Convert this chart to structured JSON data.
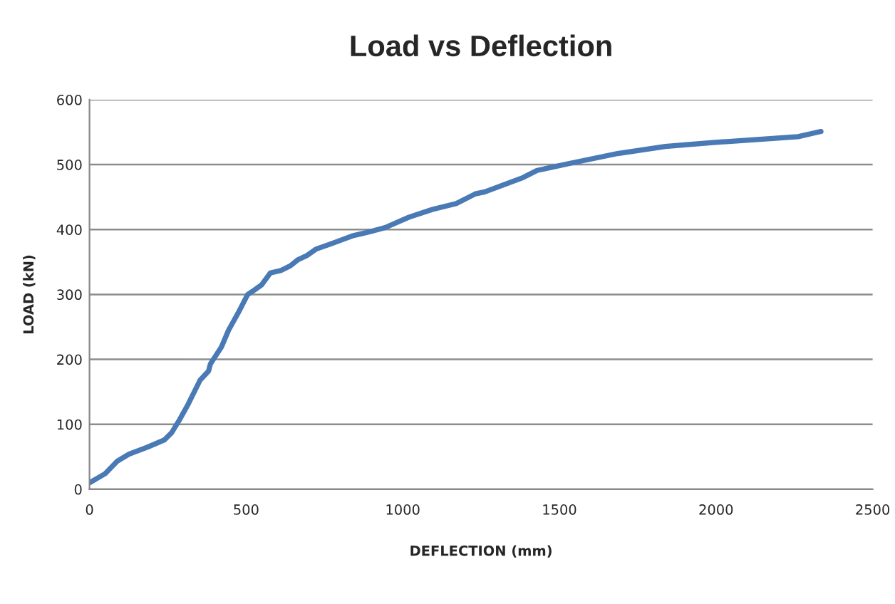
{
  "chart_data": {
    "type": "line",
    "title": "Load vs Deflection",
    "xlabel": "DEFLECTION (mm)",
    "ylabel": "LOAD (kN)",
    "series": [
      {
        "color": "#4a7ab5",
        "x": [
          0,
          50,
          88,
          126,
          186,
          239,
          262,
          285,
          315,
          353,
          380,
          386,
          421,
          444,
          474,
          505,
          527,
          550,
          577,
          611,
          641,
          664,
          694,
          724,
          777,
          838,
          898,
          944,
          1020,
          1095,
          1171,
          1232,
          1262,
          1384,
          1429,
          1535,
          1686,
          1838,
          1990,
          2140,
          2262,
          2308,
          2335
        ],
        "values": [
          10,
          24,
          43,
          54,
          65,
          76,
          87,
          105,
          131,
          168,
          182,
          193,
          219,
          245,
          271,
          300,
          307,
          315,
          333,
          337,
          344,
          353,
          360,
          370,
          379,
          390,
          397,
          403,
          419,
          431,
          440,
          455,
          458,
          480,
          491,
          502,
          517,
          528,
          534,
          539,
          543,
          548,
          551
        ]
      }
    ],
    "xlim": [
      0,
      2500
    ],
    "xticks": [
      0,
      500,
      1000,
      1500,
      2000,
      2500
    ],
    "ylim": [
      0,
      600
    ],
    "yticks": [
      0,
      100,
      200,
      300,
      400,
      500,
      600
    ],
    "grid": "y",
    "marker": "none",
    "line_style": "solid"
  }
}
